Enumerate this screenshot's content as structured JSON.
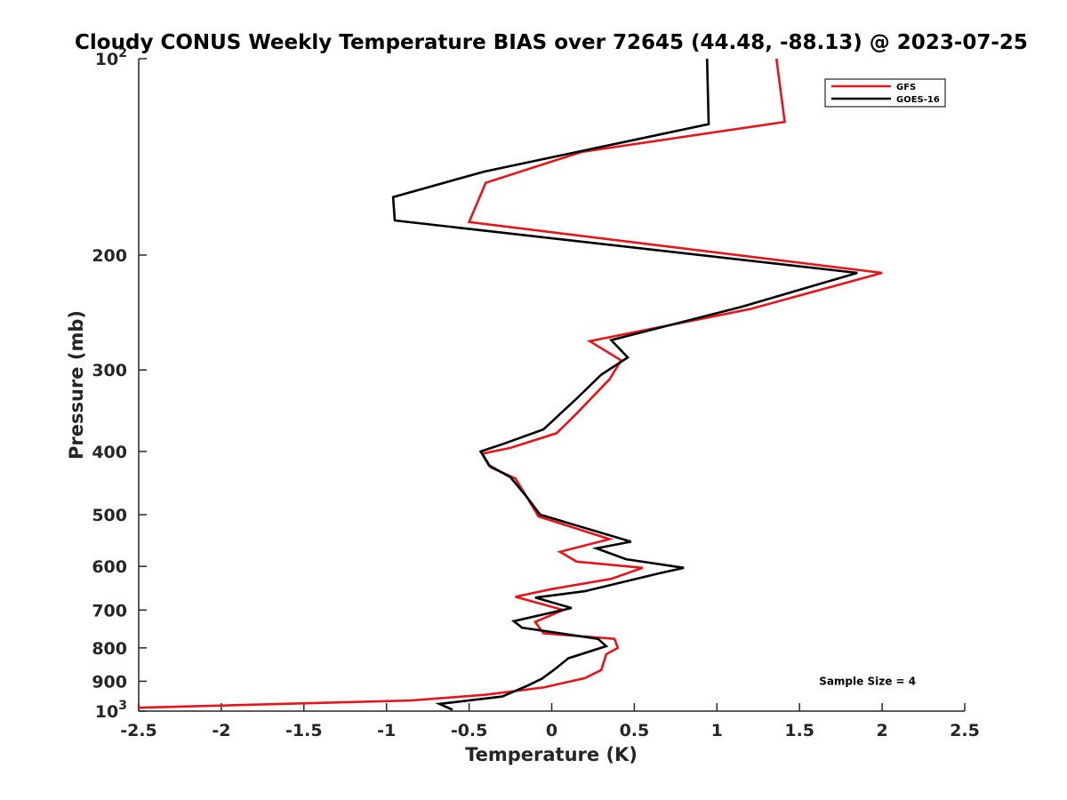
{
  "chart_data": {
    "type": "line",
    "title": "Cloudy CONUS Weekly Temperature BIAS over 72645 (44.48, -88.13) @ 2023-07-25",
    "xlabel": "Temperature (K)",
    "ylabel": "Pressure (mb)",
    "xlim": [
      -2.5,
      2.5
    ],
    "ylim": [
      1000,
      100
    ],
    "yscale": "log",
    "grid": false,
    "legend_position": "top-right",
    "x_ticks": [
      -2.5,
      -2,
      -1.5,
      -1,
      -0.5,
      0,
      0.5,
      1,
      1.5,
      2,
      2.5
    ],
    "x_tick_labels": [
      "-2.5",
      "-2",
      "-1.5",
      "-1",
      "-0.5",
      "0",
      "0.5",
      "1",
      "1.5",
      "2",
      "2.5"
    ],
    "y_ticks": [
      100,
      200,
      300,
      400,
      500,
      600,
      700,
      800,
      900,
      1000
    ],
    "y_tick_labels": [
      {
        "base": "10",
        "exp": "2"
      },
      {
        "text": "200"
      },
      {
        "text": "300"
      },
      {
        "text": "400"
      },
      {
        "text": "500"
      },
      {
        "text": "600"
      },
      {
        "text": "700"
      },
      {
        "text": "800"
      },
      {
        "text": "900"
      },
      {
        "base": "10",
        "exp": "3"
      }
    ],
    "series": [
      {
        "name": "GFS",
        "color": "#e8141a",
        "points": [
          {
            "x": 1.36,
            "y": 100
          },
          {
            "x": 1.41,
            "y": 125
          },
          {
            "x": 0.18,
            "y": 139
          },
          {
            "x": -0.4,
            "y": 155
          },
          {
            "x": -0.5,
            "y": 178
          },
          {
            "x": 2.0,
            "y": 213
          },
          {
            "x": 1.2,
            "y": 242
          },
          {
            "x": 0.23,
            "y": 271
          },
          {
            "x": 0.42,
            "y": 290
          },
          {
            "x": 0.35,
            "y": 310
          },
          {
            "x": 0.15,
            "y": 350
          },
          {
            "x": 0.03,
            "y": 375
          },
          {
            "x": -0.25,
            "y": 395
          },
          {
            "x": -0.42,
            "y": 403
          },
          {
            "x": -0.37,
            "y": 423
          },
          {
            "x": -0.22,
            "y": 440
          },
          {
            "x": -0.15,
            "y": 470
          },
          {
            "x": -0.08,
            "y": 503
          },
          {
            "x": 0.35,
            "y": 545
          },
          {
            "x": 0.05,
            "y": 570
          },
          {
            "x": 0.15,
            "y": 590
          },
          {
            "x": 0.55,
            "y": 603
          },
          {
            "x": 0.36,
            "y": 627
          },
          {
            "x": 0.0,
            "y": 650
          },
          {
            "x": -0.22,
            "y": 668
          },
          {
            "x": 0.07,
            "y": 700
          },
          {
            "x": -0.1,
            "y": 730
          },
          {
            "x": -0.05,
            "y": 760
          },
          {
            "x": 0.38,
            "y": 775
          },
          {
            "x": 0.4,
            "y": 800
          },
          {
            "x": 0.33,
            "y": 818
          },
          {
            "x": 0.3,
            "y": 865
          },
          {
            "x": 0.2,
            "y": 890
          },
          {
            "x": -0.05,
            "y": 920
          },
          {
            "x": -0.4,
            "y": 944
          },
          {
            "x": -0.85,
            "y": 963
          },
          {
            "x": -2.5,
            "y": 988
          }
        ]
      },
      {
        "name": "GOES-16",
        "color": "#000000",
        "points": [
          {
            "x": 0.94,
            "y": 100
          },
          {
            "x": 0.95,
            "y": 126
          },
          {
            "x": -0.41,
            "y": 149
          },
          {
            "x": -0.96,
            "y": 163
          },
          {
            "x": -0.95,
            "y": 177
          },
          {
            "x": 1.85,
            "y": 213
          },
          {
            "x": 1.15,
            "y": 240
          },
          {
            "x": 0.36,
            "y": 270
          },
          {
            "x": 0.46,
            "y": 287
          },
          {
            "x": 0.3,
            "y": 305
          },
          {
            "x": 0.15,
            "y": 332
          },
          {
            "x": -0.05,
            "y": 370
          },
          {
            "x": -0.3,
            "y": 390
          },
          {
            "x": -0.43,
            "y": 400
          },
          {
            "x": -0.38,
            "y": 420
          },
          {
            "x": -0.25,
            "y": 438
          },
          {
            "x": -0.15,
            "y": 470
          },
          {
            "x": -0.07,
            "y": 500
          },
          {
            "x": 0.48,
            "y": 550
          },
          {
            "x": 0.27,
            "y": 563
          },
          {
            "x": 0.45,
            "y": 585
          },
          {
            "x": 0.8,
            "y": 603
          },
          {
            "x": 0.65,
            "y": 615
          },
          {
            "x": 0.2,
            "y": 655
          },
          {
            "x": -0.1,
            "y": 670
          },
          {
            "x": 0.12,
            "y": 695
          },
          {
            "x": -0.23,
            "y": 728
          },
          {
            "x": -0.18,
            "y": 745
          },
          {
            "x": 0.28,
            "y": 775
          },
          {
            "x": 0.33,
            "y": 795
          },
          {
            "x": 0.1,
            "y": 830
          },
          {
            "x": 0.02,
            "y": 862
          },
          {
            "x": -0.06,
            "y": 892
          },
          {
            "x": -0.15,
            "y": 915
          },
          {
            "x": -0.3,
            "y": 950
          },
          {
            "x": -0.68,
            "y": 975
          },
          {
            "x": -0.6,
            "y": 995
          }
        ]
      }
    ],
    "annotations": [
      {
        "text": "Sample Size = 4",
        "x": 1.75,
        "y": 900
      }
    ]
  }
}
